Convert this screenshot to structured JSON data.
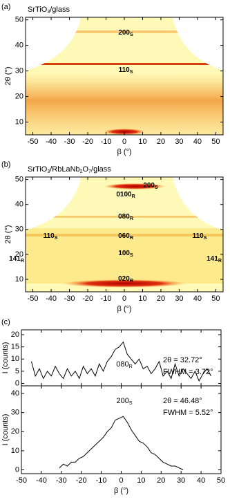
{
  "chart_data": [
    {
      "type": "image",
      "panel_label": "(a)",
      "title": [
        {
          "text": "SrTiO"
        },
        {
          "sub": "3"
        },
        {
          "text": "/glass"
        }
      ],
      "xlabel": "β (°)",
      "ylabel": "2θ (°)",
      "xlim": [
        -54,
        54
      ],
      "ylim": [
        5,
        51
      ],
      "xticks": [
        -50,
        -40,
        -30,
        -20,
        -10,
        0,
        10,
        20,
        30,
        40,
        50
      ],
      "yticks": [
        10,
        20,
        30,
        40,
        50
      ],
      "annotations": [
        {
          "text": "200",
          "sub": "S"
        },
        {
          "text": "110",
          "sub": "S"
        }
      ]
    },
    {
      "type": "image",
      "panel_label": "(b)",
      "title": [
        {
          "text": "SrTiO"
        },
        {
          "sub": "3"
        },
        {
          "text": "/RbLaNb"
        },
        {
          "sub": "2"
        },
        {
          "text": "O"
        },
        {
          "sub": "7"
        },
        {
          "text": "/glass"
        }
      ],
      "xlabel": "β (°)",
      "ylabel": "2θ (°)",
      "xlim": [
        -54,
        54
      ],
      "ylim": [
        5,
        51
      ],
      "xticks": [
        -50,
        -40,
        -30,
        -20,
        -10,
        0,
        10,
        20,
        30,
        40,
        50
      ],
      "yticks": [
        10,
        20,
        30,
        40,
        50
      ],
      "annotations": [
        {
          "text": "200",
          "sub": "S"
        },
        {
          "text": "0100",
          "sub": "R"
        },
        {
          "text": "080",
          "sub": "R"
        },
        {
          "text": "060",
          "sub": "R"
        },
        {
          "text": "100",
          "sub": "S"
        },
        {
          "text": "020",
          "sub": "R"
        },
        {
          "text": "110",
          "sub": "S"
        },
        {
          "text": "110",
          "sub": "S"
        },
        {
          "text": "141",
          "sub": "R"
        },
        {
          "text": "141",
          "sub": "R"
        }
      ]
    },
    {
      "type": "line",
      "panel_label": "(c)",
      "ylabel": "I (counts)",
      "color": "#000000",
      "xlim": [
        -50,
        50
      ],
      "ylim": [
        -1,
        22
      ],
      "xticks": [
        -50,
        -40,
        -30,
        -20,
        -10,
        0,
        10,
        20,
        30,
        40,
        50
      ],
      "yticks": [
        0,
        5,
        10,
        15,
        20
      ],
      "x": [
        -45,
        -43,
        -41,
        -39,
        -37,
        -35,
        -33,
        -31,
        -29,
        -27,
        -25,
        -23,
        -21,
        -19,
        -17,
        -15,
        -13,
        -11,
        -9,
        -7,
        -5,
        -3,
        -1,
        1,
        3,
        5,
        7,
        9,
        11,
        13,
        15,
        17,
        19,
        21,
        23,
        25,
        27,
        29,
        31,
        33,
        35,
        37,
        39,
        41,
        43,
        45
      ],
      "values": [
        9,
        3,
        6,
        2,
        5,
        3,
        7,
        4,
        2,
        6,
        3,
        5,
        2,
        7,
        4,
        6,
        3,
        8,
        5,
        9,
        11,
        14,
        15,
        17,
        12,
        10,
        8,
        10,
        6,
        7,
        4,
        6,
        9,
        3,
        5,
        2,
        8,
        3,
        6,
        4,
        2,
        5,
        1,
        4,
        6,
        3
      ],
      "peak_label": {
        "text": "080",
        "sub": "R"
      },
      "notes": [
        "2θ = 32.72°",
        "FWHM = 3.72°"
      ]
    },
    {
      "type": "line",
      "xlabel": "β (°)",
      "ylabel": "I (counts)",
      "color": "#000000",
      "xlim": [
        -50,
        50
      ],
      "ylim": [
        -2,
        44
      ],
      "xticks": [
        -50,
        -40,
        -30,
        -20,
        -10,
        0,
        10,
        20,
        30,
        40,
        50
      ],
      "yticks": [
        0,
        10,
        20,
        30,
        40
      ],
      "x": [
        -31,
        -29,
        -27,
        -25,
        -23,
        -21,
        -19,
        -17,
        -15,
        -13,
        -11,
        -9,
        -7,
        -5,
        -3,
        -1,
        1,
        3,
        5,
        7,
        9,
        11,
        13,
        15,
        17,
        19,
        21,
        23,
        25,
        27,
        29,
        31
      ],
      "values": [
        1,
        3,
        2,
        4,
        4,
        6,
        7,
        9,
        11,
        13,
        15,
        17,
        20,
        22,
        26,
        27,
        28,
        25,
        21,
        18,
        15,
        14,
        12,
        9,
        8,
        6,
        4,
        3,
        2,
        2,
        1,
        0
      ],
      "peak_label": {
        "text": "200",
        "sub": "S"
      },
      "notes": [
        "2θ = 46.48°",
        "FWHM = 5.52°"
      ]
    }
  ]
}
